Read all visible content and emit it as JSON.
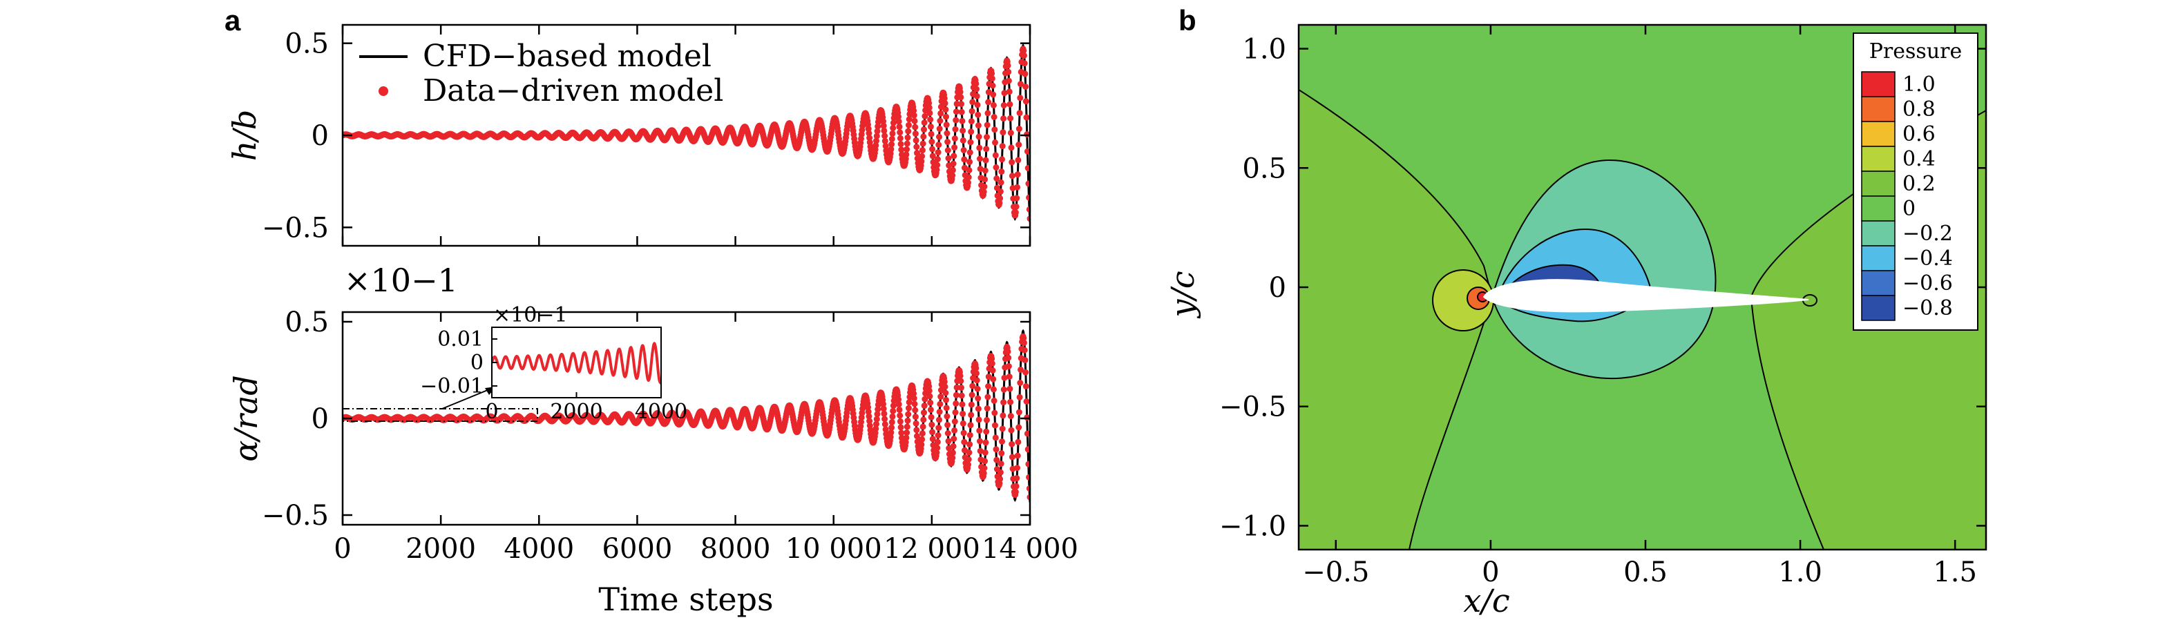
{
  "panels": {
    "a": "a",
    "b": "b"
  },
  "chart_data": [
    {
      "id": "a-top",
      "type": "line",
      "ylabel": "h/b",
      "xlim": [
        0,
        14000
      ],
      "ylim": [
        -0.6,
        0.6
      ],
      "yticks": [
        -0.5,
        0,
        0.5
      ],
      "ytick_labels": [
        "−0.5",
        "0",
        "0.5"
      ],
      "legend": [
        {
          "label": "CFD−based model",
          "style": "line",
          "color": "#000000"
        },
        {
          "label": "Data−driven model",
          "style": "dots",
          "color": "#e8262b"
        }
      ],
      "series": [
        {
          "name": "CFD−based model",
          "color": "#000000",
          "kind": "oscillation",
          "amp_start": 0.005,
          "amp_end": 0.52,
          "period_start": 260,
          "period_end": 330
        },
        {
          "name": "Data−driven model",
          "color": "#e8262b",
          "kind": "oscillation",
          "amp_start": 0.005,
          "amp_end": 0.5,
          "period_start": 260,
          "period_end": 330
        }
      ],
      "legend_position": "top-left"
    },
    {
      "id": "a-bottom",
      "type": "line",
      "ylabel": "α/rad",
      "scale_label": "×10−1",
      "xlabel": "Time steps",
      "xlim": [
        0,
        14000
      ],
      "ylim": [
        -0.55,
        0.55
      ],
      "xticks": [
        0,
        2000,
        4000,
        6000,
        8000,
        10000,
        12000,
        14000
      ],
      "xtick_labels": [
        "0",
        "2000",
        "4000",
        "6000",
        "8000",
        "10 000",
        "12 000",
        "14 000"
      ],
      "yticks": [
        -0.5,
        0,
        0.5
      ],
      "ytick_labels": [
        "−0.5",
        "0",
        "0.5"
      ],
      "series": [
        {
          "name": "CFD−based model",
          "color": "#000000",
          "kind": "oscillation",
          "amp_start": 0.006,
          "amp_end": 0.48,
          "period_start": 260,
          "period_end": 330
        },
        {
          "name": "Data−driven model",
          "color": "#e8262b",
          "kind": "oscillation",
          "amp_start": 0.006,
          "amp_end": 0.45,
          "period_start": 260,
          "period_end": 330
        }
      ],
      "inset": {
        "scale_label": "×10−1",
        "xlim": [
          0,
          4000
        ],
        "ylim": [
          -0.015,
          0.015
        ],
        "xticks": [
          0,
          2000,
          4000
        ],
        "xtick_labels": [
          "0",
          "2000",
          "4000"
        ],
        "yticks": [
          0.01,
          0,
          -0.01
        ],
        "ytick_labels": [
          "0.01",
          "0",
          "−0.01"
        ],
        "amp_start": 0.0025,
        "amp_end": 0.009
      }
    },
    {
      "id": "b",
      "type": "heatmap",
      "xlabel": "x/c",
      "ylabel": "y/c",
      "xlim": [
        -0.62,
        1.6
      ],
      "ylim": [
        -1.1,
        1.1
      ],
      "xticks": [
        -0.5,
        0,
        0.5,
        1.0,
        1.5
      ],
      "xtick_labels": [
        "−0.5",
        "0",
        "0.5",
        "1.0",
        "1.5"
      ],
      "yticks": [
        1.0,
        0.5,
        0,
        -0.5,
        -1.0
      ],
      "ytick_labels": [
        "1.0",
        "0.5",
        "0",
        "−0.5",
        "−1.0"
      ],
      "colorbar": {
        "title": "Pressure",
        "levels": [
          {
            "label": "1.0",
            "color": "#e8262b"
          },
          {
            "label": "0.8",
            "color": "#f26a2a"
          },
          {
            "label": "0.6",
            "color": "#f2be2c"
          },
          {
            "label": "0.4",
            "color": "#b7d53b"
          },
          {
            "label": "0.2",
            "color": "#7cc43f"
          },
          {
            "label": "0",
            "color": "#6cc451"
          },
          {
            "label": "−0.2",
            "color": "#6ccba3"
          },
          {
            "label": "−0.4",
            "color": "#52bde6"
          },
          {
            "label": "−0.6",
            "color": "#3d72c8"
          },
          {
            "label": "−0.8",
            "color": "#2c4ea8"
          }
        ]
      },
      "background_color": "#6cc451"
    }
  ]
}
